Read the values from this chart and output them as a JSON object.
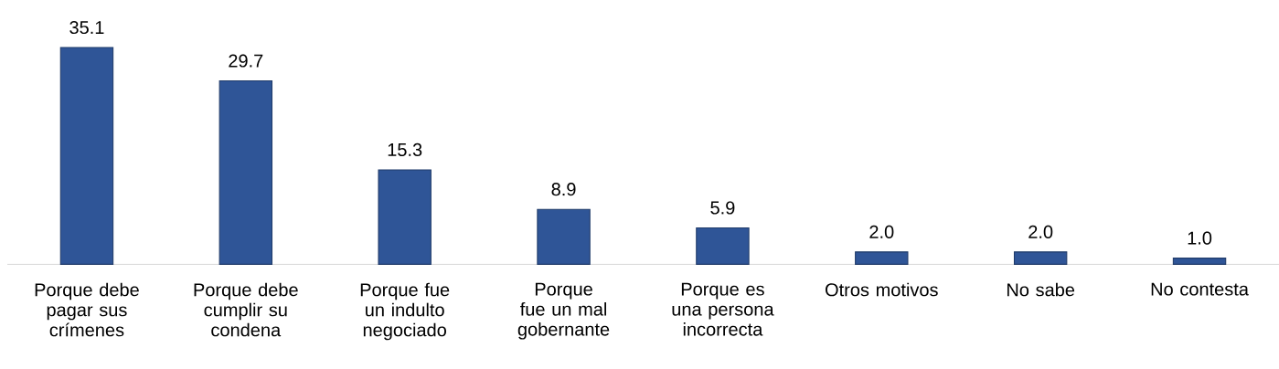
{
  "chart_data": {
    "type": "bar",
    "categories": [
      "Porque debe pagar sus crímenes",
      "Porque debe cumplir su condena",
      "Porque fue un indulto negociado",
      "Porque fue un mal gobernante",
      "Porque es una persona incorrecta",
      "Otros motivos",
      "No sabe",
      "No contesta"
    ],
    "values": [
      35.1,
      29.7,
      15.3,
      8.9,
      5.9,
      2.0,
      2.0,
      1.0
    ],
    "value_labels": [
      "35.1",
      "29.7",
      "15.3",
      "8.9",
      "5.9",
      "2.0",
      "2.0",
      "1.0"
    ],
    "color": "#2f5597"
  }
}
